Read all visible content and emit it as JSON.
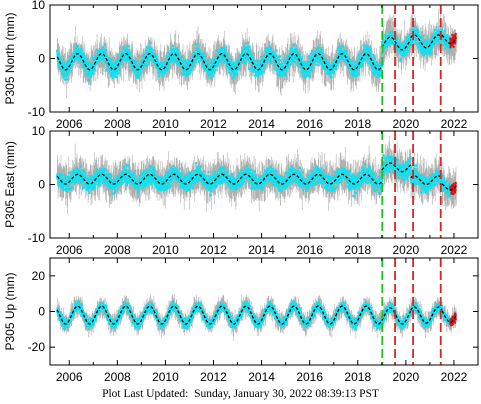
{
  "footer": {
    "label": "Plot Last Updated:",
    "timestamp": "Sunday, January 30, 2022 08:39:13 PST"
  },
  "colors": {
    "raw": "#b0b0b0",
    "daily": "#12e0ee",
    "rapid": "#dd1111",
    "model": "#000000",
    "equipment_change": "#22bb22",
    "event": "#dd2222"
  },
  "chart_data": [
    {
      "type": "scatter",
      "ylabel": "P305 North (mm)",
      "xlim": [
        2005.2,
        2023.0
      ],
      "ylim": [
        -10,
        10
      ],
      "yticks": [
        -10,
        0,
        10
      ],
      "xticks": [
        2006,
        2008,
        2010,
        2012,
        2014,
        2016,
        2018,
        2020,
        2022
      ],
      "xtick_labels": [
        "2006",
        "2008",
        "2010",
        "2012",
        "2014",
        "2016",
        "2018",
        "2020",
        "2022"
      ],
      "model": {
        "segments": [
          {
            "start": 2005.5,
            "end": 2019.0,
            "offset": -0.6,
            "amp": 1.5
          },
          {
            "start": 2019.0,
            "end": 2020.2,
            "offset": 2.8,
            "amp": 1.2
          },
          {
            "start": 2020.2,
            "end": 2021.5,
            "offset": 3.2,
            "amp": 1.2
          },
          {
            "start": 2021.5,
            "end": 2022.1,
            "offset": 3.8,
            "amp": 1.0
          }
        ]
      },
      "vertical_lines": [
        {
          "x": 2019.02,
          "kind": "equipment_change"
        },
        {
          "x": 2019.55,
          "kind": "event"
        },
        {
          "x": 2020.3,
          "kind": "event"
        },
        {
          "x": 2021.45,
          "kind": "event"
        }
      ],
      "data_range": [
        2005.5,
        2022.1
      ],
      "rapid_range": [
        2021.85,
        2022.08
      ]
    },
    {
      "type": "scatter",
      "ylabel": "P305 East (mm)",
      "xlim": [
        2005.2,
        2023.0
      ],
      "ylim": [
        -10,
        10
      ],
      "yticks": [
        -10,
        0,
        10
      ],
      "xticks": [
        2006,
        2008,
        2010,
        2012,
        2014,
        2016,
        2018,
        2020,
        2022
      ],
      "xtick_labels": [
        "2006",
        "2008",
        "2010",
        "2012",
        "2014",
        "2016",
        "2018",
        "2020",
        "2022"
      ],
      "model": {
        "segments": [
          {
            "start": 2005.5,
            "end": 2019.0,
            "offset": 1.0,
            "amp": 0.9
          },
          {
            "start": 2019.0,
            "end": 2020.2,
            "offset": 3.2,
            "amp": 0.8
          },
          {
            "start": 2020.2,
            "end": 2021.5,
            "offset": 0.8,
            "amp": 0.8
          },
          {
            "start": 2021.5,
            "end": 2022.1,
            "offset": -0.3,
            "amp": 0.7
          }
        ]
      },
      "vertical_lines": [
        {
          "x": 2019.02,
          "kind": "equipment_change"
        },
        {
          "x": 2019.55,
          "kind": "event"
        },
        {
          "x": 2020.3,
          "kind": "event"
        },
        {
          "x": 2021.45,
          "kind": "event"
        }
      ],
      "data_range": [
        2005.5,
        2022.1
      ],
      "rapid_range": [
        2021.85,
        2022.08
      ]
    },
    {
      "type": "scatter",
      "ylabel": "P305 Up (mm)",
      "xlim": [
        2005.2,
        2023.0
      ],
      "ylim": [
        -30,
        30
      ],
      "yticks": [
        -20,
        0,
        20
      ],
      "xticks": [
        2006,
        2008,
        2010,
        2012,
        2014,
        2016,
        2018,
        2020,
        2022
      ],
      "xtick_labels": [
        "2006",
        "2008",
        "2010",
        "2012",
        "2014",
        "2016",
        "2018",
        "2020",
        "2022"
      ],
      "model": {
        "segments": [
          {
            "start": 2005.5,
            "end": 2019.0,
            "offset": -2.0,
            "amp": 5.0
          },
          {
            "start": 2019.0,
            "end": 2020.2,
            "offset": -2.5,
            "amp": 4.5
          },
          {
            "start": 2020.2,
            "end": 2021.5,
            "offset": -2.0,
            "amp": 4.5
          },
          {
            "start": 2021.5,
            "end": 2022.1,
            "offset": -2.0,
            "amp": 4.0
          }
        ]
      },
      "vertical_lines": [
        {
          "x": 2019.02,
          "kind": "equipment_change"
        },
        {
          "x": 2019.55,
          "kind": "event"
        },
        {
          "x": 2020.3,
          "kind": "event"
        },
        {
          "x": 2021.45,
          "kind": "event"
        }
      ],
      "data_range": [
        2005.5,
        2022.1
      ],
      "rapid_range": [
        2021.85,
        2022.08
      ]
    }
  ]
}
